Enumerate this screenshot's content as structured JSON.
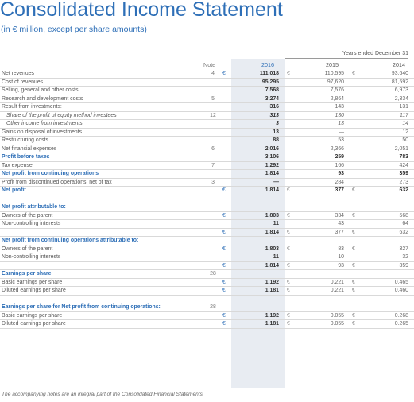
{
  "title": "Consolidated Income Statement",
  "subtitle": "(in € million, except per share amounts)",
  "header": {
    "years_label": "Years ended December 31",
    "note_label": "Note",
    "years": [
      "2016",
      "2015",
      "2014"
    ]
  },
  "rows": [
    {
      "label": "Net revenues",
      "note": "4",
      "c1": "€",
      "v1": "111,018",
      "c2": "€",
      "v2": "110,595",
      "c3": "€",
      "v3": "93,640",
      "style": "normal",
      "rule": true
    },
    {
      "label": "Cost of revenues",
      "note": "",
      "c1": "",
      "v1": "95,295",
      "c2": "",
      "v2": "97,620",
      "c3": "",
      "v3": "81,592",
      "style": "normal",
      "rule": true
    },
    {
      "label": "Selling, general and other costs",
      "note": "",
      "c1": "",
      "v1": "7,568",
      "c2": "",
      "v2": "7,576",
      "c3": "",
      "v3": "6,973",
      "style": "normal",
      "rule": true
    },
    {
      "label": "Research and development costs",
      "note": "5",
      "c1": "",
      "v1": "3,274",
      "c2": "",
      "v2": "2,864",
      "c3": "",
      "v3": "2,334",
      "style": "normal",
      "rule": true
    },
    {
      "label": "Result from investments:",
      "note": "",
      "c1": "",
      "v1": "316",
      "c2": "",
      "v2": "143",
      "c3": "",
      "v3": "131",
      "style": "normal",
      "rule": true
    },
    {
      "label": "Share of the profit of equity method investees",
      "note": "12",
      "c1": "",
      "v1": "313",
      "c2": "",
      "v2": "130",
      "c3": "",
      "v3": "117",
      "style": "indent",
      "rule": true
    },
    {
      "label": "Other income from investments",
      "note": "",
      "c1": "",
      "v1": "3",
      "c2": "",
      "v2": "13",
      "c3": "",
      "v3": "14",
      "style": "indent",
      "rule": true
    },
    {
      "label": "Gains on disposal of investments",
      "note": "",
      "c1": "",
      "v1": "13",
      "c2": "",
      "v2": "—",
      "c3": "",
      "v3": "12",
      "style": "normal",
      "rule": true
    },
    {
      "label": "Restructuring costs",
      "note": "",
      "c1": "",
      "v1": "88",
      "c2": "",
      "v2": "53",
      "c3": "",
      "v3": "50",
      "style": "normal",
      "rule": true
    },
    {
      "label": "Net financial expenses",
      "note": "6",
      "c1": "",
      "v1": "2,016",
      "c2": "",
      "v2": "2,366",
      "c3": "",
      "v3": "2,051",
      "style": "normal",
      "rule": true
    },
    {
      "label": "Profit before taxes",
      "note": "",
      "c1": "",
      "v1": "3,106",
      "c2": "",
      "v2": "259",
      "c3": "",
      "v3": "783",
      "style": "bold",
      "rule": true
    },
    {
      "label": "Tax expense",
      "note": "7",
      "c1": "",
      "v1": "1,292",
      "c2": "",
      "v2": "166",
      "c3": "",
      "v3": "424",
      "style": "normal",
      "rule": true
    },
    {
      "label": "Net profit from continuing operations",
      "note": "",
      "c1": "",
      "v1": "1,814",
      "c2": "",
      "v2": "93",
      "c3": "",
      "v3": "359",
      "style": "bold",
      "rule": true
    },
    {
      "label": "Profit from discontinued operations, net of tax",
      "note": "3",
      "c1": "",
      "v1": "—",
      "c2": "",
      "v2": "284",
      "c3": "",
      "v3": "273",
      "style": "normal",
      "rule": true
    },
    {
      "label": "Net profit",
      "note": "",
      "c1": "€",
      "v1": "1,814",
      "c2": "€",
      "v2": "377",
      "c3": "€",
      "v3": "632",
      "style": "bold",
      "rule": true,
      "strong": true
    },
    {
      "label": "",
      "note": "",
      "c1": "",
      "v1": "",
      "c2": "",
      "v2": "",
      "c3": "",
      "v3": "",
      "style": "spacer",
      "rule": false
    },
    {
      "label": "Net profit attributable to:",
      "note": "",
      "c1": "",
      "v1": "",
      "c2": "",
      "v2": "",
      "c3": "",
      "v3": "",
      "style": "sechead",
      "rule": true
    },
    {
      "label": "Owners of the parent",
      "note": "",
      "c1": "€",
      "v1": "1,803",
      "c2": "€",
      "v2": "334",
      "c3": "€",
      "v3": "568",
      "style": "normal",
      "rule": true
    },
    {
      "label": "Non-controlling interests",
      "note": "",
      "c1": "",
      "v1": "11",
      "c2": "",
      "v2": "43",
      "c3": "",
      "v3": "64",
      "style": "normal",
      "rule": true
    },
    {
      "label": "",
      "note": "",
      "c1": "€",
      "v1": "1,814",
      "c2": "€",
      "v2": "377",
      "c3": "€",
      "v3": "632",
      "style": "normal",
      "rule": true
    },
    {
      "label": "Net profit from continuing operations attributable to:",
      "note": "",
      "c1": "",
      "v1": "",
      "c2": "",
      "v2": "",
      "c3": "",
      "v3": "",
      "style": "sechead",
      "rule": true
    },
    {
      "label": "Owners of the parent",
      "note": "",
      "c1": "€",
      "v1": "1,803",
      "c2": "€",
      "v2": "83",
      "c3": "€",
      "v3": "327",
      "style": "normal",
      "rule": true
    },
    {
      "label": "Non-controlling interests",
      "note": "",
      "c1": "",
      "v1": "11",
      "c2": "",
      "v2": "10",
      "c3": "",
      "v3": "32",
      "style": "normal",
      "rule": true
    },
    {
      "label": "",
      "note": "",
      "c1": "€",
      "v1": "1,814",
      "c2": "€",
      "v2": "93",
      "c3": "€",
      "v3": "359",
      "style": "normal",
      "rule": true
    },
    {
      "label": "Earnings per share:",
      "note": "28",
      "c1": "",
      "v1": "",
      "c2": "",
      "v2": "",
      "c3": "",
      "v3": "",
      "style": "sechead",
      "rule": true
    },
    {
      "label": "Basic earnings per share",
      "note": "",
      "c1": "€",
      "v1": "1.192",
      "c2": "€",
      "v2": "0.221",
      "c3": "€",
      "v3": "0.465",
      "style": "normal",
      "rule": true
    },
    {
      "label": "Diluted earnings per share",
      "note": "",
      "c1": "€",
      "v1": "1.181",
      "c2": "€",
      "v2": "0.221",
      "c3": "€",
      "v3": "0.460",
      "style": "normal",
      "rule": true
    },
    {
      "label": "",
      "note": "",
      "c1": "",
      "v1": "",
      "c2": "",
      "v2": "",
      "c3": "",
      "v3": "",
      "style": "spacer",
      "rule": false
    },
    {
      "label": "Earnings per share for Net profit from continuing operations:",
      "note": "28",
      "c1": "",
      "v1": "",
      "c2": "",
      "v2": "",
      "c3": "",
      "v3": "",
      "style": "sechead",
      "rule": true
    },
    {
      "label": "Basic earnings per share",
      "note": "",
      "c1": "€",
      "v1": "1.192",
      "c2": "€",
      "v2": "0.055",
      "c3": "€",
      "v3": "0.268",
      "style": "normal",
      "rule": true
    },
    {
      "label": "Diluted earnings per share",
      "note": "",
      "c1": "€",
      "v1": "1.181",
      "c2": "€",
      "v2": "0.055",
      "c3": "€",
      "v3": "0.265",
      "style": "normal",
      "rule": true
    }
  ],
  "footnote": "The accompanying notes are an integral part of the Consolidated Financial Statements."
}
